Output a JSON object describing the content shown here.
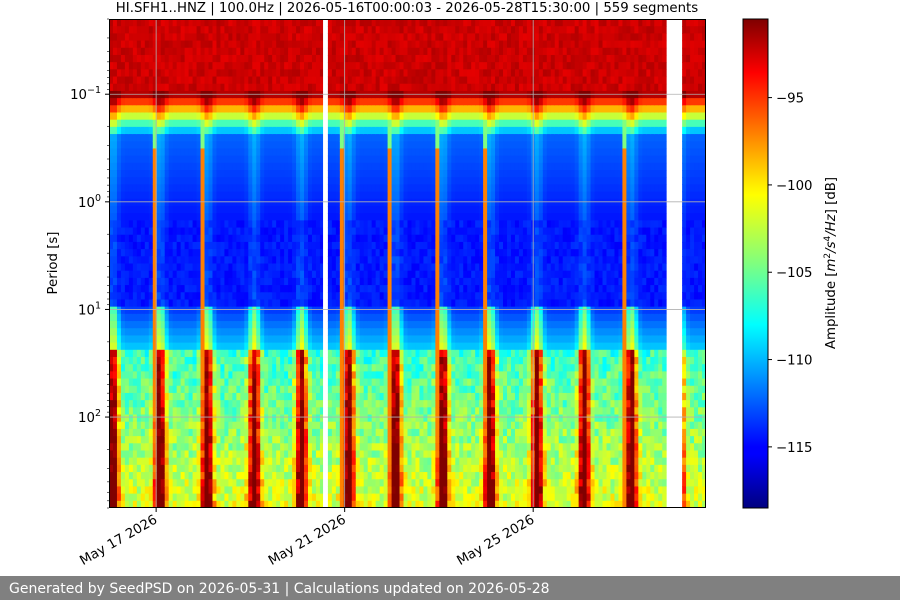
{
  "chart_data": {
    "type": "heatmap",
    "title": "HI.SFH1..HNZ | 100.0Hz | 2026-05-16T00:00:03 - 2026-05-28T15:30:00 | 559 segments",
    "xlabel": "",
    "ylabel": "Period [s]",
    "y_scale": "log",
    "y_inverted": true,
    "ylim": [
      0.02,
      700
    ],
    "xlim": [
      "2026-05-16T00:00:00",
      "2026-05-28T16:00:00"
    ],
    "x_ticks": [
      {
        "date": "2026-05-17",
        "label": "May 17 2026"
      },
      {
        "date": "2026-05-21",
        "label": "May 21 2026"
      },
      {
        "date": "2026-05-25",
        "label": "May 25 2026"
      }
    ],
    "y_ticks": [
      {
        "value": 0.1,
        "base": "10",
        "exp": "−1"
      },
      {
        "value": 1,
        "base": "10",
        "exp": "0"
      },
      {
        "value": 10,
        "base": "10",
        "exp": "1"
      },
      {
        "value": 100,
        "base": "10",
        "exp": "2"
      }
    ],
    "grid": true,
    "colormap": "jet",
    "colorbar": {
      "label_main": "Amplitude [",
      "label_math_m": "m",
      "label_sup2": "2",
      "label_math_s": "/s",
      "label_sup4": "4",
      "label_math_hz": "/Hz",
      "label_end": "] [dB]",
      "range_db": [
        -118.5,
        -90.5
      ],
      "ticks": [
        -95,
        -100,
        -105,
        -110,
        -115
      ],
      "tick_labels": [
        "−95",
        "−100",
        "−105",
        "−110",
        "−115"
      ]
    },
    "gaps": [
      {
        "start": "2026-05-20T13:00:00",
        "end": "2026-05-20T15:00:00"
      },
      {
        "start": "2026-05-27T20:00:00",
        "end": "2026-05-28T03:00:00"
      }
    ],
    "daily_bright_lines": [
      "2026-05-16T23:00:00",
      "2026-05-17T23:00:00",
      "2026-05-18T23:00:00",
      "2026-05-19T23:00:00",
      "2026-05-20T23:00:00",
      "2026-05-21T23:00:00",
      "2026-05-22T23:00:00",
      "2026-05-23T23:00:00",
      "2026-05-24T23:00:00",
      "2026-05-25T23:00:00",
      "2026-05-26T23:00:00"
    ],
    "diurnal_peaks": [
      "2026-05-16T02:00:00",
      "2026-05-17T02:00:00",
      "2026-05-18T02:00:00",
      "2026-05-19T02:00:00",
      "2026-05-20T02:00:00",
      "2026-05-21T02:00:00",
      "2026-05-22T02:00:00",
      "2026-05-23T02:00:00",
      "2026-05-24T02:00:00",
      "2026-05-25T02:00:00",
      "2026-05-26T02:00:00",
      "2026-05-27T02:00:00",
      "2026-05-28T02:00:00"
    ]
  },
  "footer": {
    "text": "Generated by SeedPSD on 2026-05-31 | Calculations updated on 2026-05-28"
  }
}
